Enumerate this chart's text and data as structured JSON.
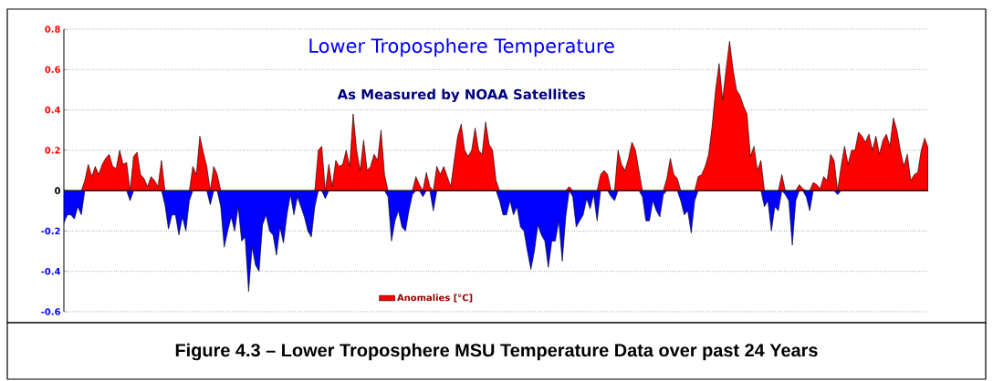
{
  "chart_data": {
    "type": "area",
    "title": "Lower Troposphere Temperature",
    "subtitle": "As Measured by NOAA Satellites",
    "categories": [
      null,
      null,
      null,
      null,
      null,
      null,
      null,
      null,
      null,
      null,
      null,
      null,
      null,
      null,
      null,
      null,
      null,
      null,
      null,
      null,
      null,
      null,
      null,
      null,
      null,
      null,
      null,
      null,
      null,
      null,
      null,
      null,
      null,
      null,
      null,
      null,
      null,
      null,
      null,
      null,
      null,
      null,
      null,
      null,
      null,
      null,
      null,
      null,
      null,
      null,
      null,
      null,
      null,
      null,
      null,
      null,
      null,
      null,
      null,
      null,
      null,
      null,
      null,
      null,
      null,
      null,
      null,
      null,
      null,
      null,
      null,
      null,
      null,
      null,
      null,
      null,
      null,
      null,
      null,
      null,
      null,
      null,
      null,
      null,
      null,
      null,
      null,
      null,
      null,
      null,
      null,
      null,
      null,
      null,
      null,
      null,
      null,
      null,
      null,
      null,
      null,
      null,
      null,
      null,
      null,
      null,
      null,
      null,
      null,
      null,
      null,
      null,
      null,
      null,
      null,
      null,
      null,
      null,
      null,
      null,
      null,
      null,
      null,
      null,
      null,
      null,
      null,
      null,
      null,
      null,
      null,
      null,
      null,
      null,
      null,
      null,
      null,
      null,
      null,
      null,
      null,
      null,
      null,
      null,
      null,
      null,
      null,
      null,
      null,
      null,
      null,
      null,
      null,
      null,
      null,
      null,
      null,
      null,
      null,
      null,
      null,
      null,
      null,
      null,
      null,
      null,
      null,
      null,
      null,
      null,
      null,
      null,
      null,
      null,
      null,
      null,
      null,
      null,
      null,
      null,
      null,
      null,
      null,
      null,
      null,
      null,
      null,
      null,
      null,
      null,
      null,
      null,
      null,
      null,
      null,
      null,
      null,
      null,
      null,
      null,
      null,
      null,
      null,
      null,
      null,
      null,
      null,
      null,
      null,
      null,
      null,
      null,
      null,
      null,
      null,
      null,
      null,
      null,
      null,
      null,
      null,
      null,
      null,
      null,
      null,
      null,
      null,
      null,
      null,
      null,
      null,
      null,
      null,
      null,
      null,
      null,
      null,
      null,
      null,
      null,
      null,
      null,
      null,
      null,
      null,
      null,
      null,
      null,
      null
    ],
    "series": [
      {
        "name": "Anomalies [°C]",
        "color": "#ff0000",
        "values": [
          0,
          0,
          0,
          0,
          0,
          0,
          0.05,
          0.13,
          0.07,
          0.12,
          0.08,
          0.13,
          0.16,
          0.18,
          0.12,
          0.11,
          0.2,
          0.13,
          0.14,
          0,
          0.17,
          0.19,
          0.08,
          0.06,
          0.02,
          0.07,
          0.05,
          0.02,
          0.15,
          0,
          0,
          0,
          0,
          0,
          0,
          0,
          0,
          0.12,
          0.08,
          0.27,
          0.19,
          0.12,
          0,
          0.12,
          0.08,
          0,
          0,
          0,
          0,
          0,
          0,
          0,
          0,
          0,
          0,
          0,
          0,
          0,
          0,
          0,
          0,
          0,
          0,
          0,
          0,
          0,
          0,
          0,
          0,
          0,
          0,
          0,
          0,
          0.2,
          0.22,
          0,
          0.13,
          0.02,
          0.15,
          0.12,
          0.13,
          0.2,
          0.12,
          0.38,
          0.2,
          0.1,
          0.25,
          0.1,
          0.12,
          0.18,
          0.15,
          0.3,
          0.08,
          0,
          0,
          0,
          0,
          0,
          0,
          0,
          0,
          0.07,
          0.03,
          0,
          0.09,
          0.02,
          0,
          0.12,
          0.08,
          0.12,
          0.07,
          0.02,
          0.15,
          0.27,
          0.33,
          0.2,
          0.17,
          0.2,
          0.31,
          0.2,
          0.18,
          0.34,
          0.23,
          0.2,
          0.05,
          0,
          0,
          0,
          0,
          0,
          0,
          0,
          0,
          0,
          0,
          0,
          0,
          0,
          0,
          0,
          0,
          0,
          0,
          0,
          0,
          0.02,
          0,
          0,
          0,
          0,
          0,
          0,
          0,
          0,
          0.08,
          0.1,
          0.08,
          0,
          0,
          0.2,
          0.13,
          0.1,
          0.16,
          0.24,
          0.2,
          0.1,
          0,
          0,
          0,
          0,
          0,
          0,
          0,
          0.06,
          0.16,
          0.08,
          0.06,
          0,
          0,
          0,
          0,
          0,
          0.07,
          0.08,
          0.12,
          0.18,
          0.32,
          0.5,
          0.63,
          0.45,
          0.6,
          0.74,
          0.6,
          0.5,
          0.47,
          0.42,
          0.38,
          0.17,
          0.22,
          0.1,
          0.15,
          0,
          0,
          0,
          0,
          0,
          0.08,
          0,
          0,
          0,
          0,
          0.03,
          0.01,
          0,
          0,
          0.04,
          0.03,
          0.01,
          0.07,
          0.05,
          0.18,
          0.15,
          0,
          0.12,
          0.22,
          0.13,
          0.2,
          0.2,
          0.29,
          0.27,
          0.24,
          0.28,
          0.2,
          0.27,
          0.18,
          0.25,
          0.28,
          0.22,
          0.36,
          0.3,
          0.2,
          0.12,
          0.18,
          0.05,
          0.08,
          0.09,
          0.2,
          0.26,
          0.21
        ]
      },
      {
        "color": "#0000ff",
        "values": [
          -0.16,
          -0.12,
          -0.12,
          -0.14,
          -0.08,
          -0.12,
          0,
          0,
          0,
          0,
          0,
          0,
          0,
          0,
          0,
          0,
          0,
          0,
          0,
          -0.05,
          0,
          0,
          0,
          0,
          0,
          0,
          0,
          0,
          0,
          -0.07,
          -0.19,
          -0.12,
          -0.12,
          -0.22,
          -0.13,
          -0.2,
          -0.05,
          0,
          0,
          0,
          0,
          0,
          -0.07,
          0,
          0,
          -0.08,
          -0.28,
          -0.2,
          -0.13,
          -0.2,
          -0.08,
          -0.25,
          -0.23,
          -0.5,
          -0.28,
          -0.37,
          -0.4,
          -0.17,
          -0.12,
          -0.2,
          -0.22,
          -0.32,
          -0.18,
          -0.26,
          -0.12,
          -0.02,
          -0.12,
          -0.03,
          -0.08,
          -0.13,
          -0.2,
          -0.23,
          -0.08,
          0,
          0,
          -0.04,
          0,
          0,
          0,
          0,
          0,
          0,
          0,
          0,
          0,
          0,
          0,
          0,
          0,
          0,
          0,
          0,
          0,
          -0.03,
          -0.25,
          -0.15,
          -0.1,
          -0.18,
          -0.2,
          -0.1,
          -0.02,
          0,
          0,
          -0.03,
          0,
          0,
          -0.1,
          0,
          0,
          0,
          0,
          0,
          0,
          0,
          0,
          0,
          0,
          0,
          0,
          0,
          0,
          0,
          0,
          0,
          0,
          -0.05,
          -0.12,
          -0.12,
          -0.05,
          -0.12,
          -0.08,
          -0.18,
          -0.2,
          -0.3,
          -0.39,
          -0.3,
          -0.17,
          -0.22,
          -0.25,
          -0.38,
          -0.25,
          -0.25,
          -0.15,
          -0.35,
          -0.13,
          0,
          -0.03,
          -0.18,
          -0.15,
          -0.12,
          -0.04,
          -0.09,
          -0.02,
          -0.15,
          0,
          0,
          0,
          -0.03,
          -0.05,
          0,
          0,
          0,
          0,
          0,
          0,
          0,
          -0.03,
          -0.15,
          -0.15,
          -0.05,
          -0.1,
          -0.13,
          -0.02,
          0,
          0,
          0,
          0,
          -0.05,
          -0.12,
          -0.1,
          -0.21,
          -0.05,
          0,
          0,
          0,
          0,
          0,
          0,
          0,
          0,
          0,
          0,
          0,
          0,
          0,
          0,
          0,
          0,
          0,
          0,
          0,
          -0.08,
          -0.05,
          -0.2,
          -0.08,
          -0.1,
          0,
          -0.02,
          -0.05,
          -0.27,
          -0.05,
          0,
          0,
          -0.03,
          -0.1,
          0,
          0,
          0,
          0,
          0,
          0,
          0,
          -0.02,
          0,
          0,
          0,
          0,
          0,
          0,
          0,
          0,
          0,
          0,
          0,
          0,
          0,
          0,
          0,
          0,
          0,
          0,
          0,
          0,
          0,
          0,
          0,
          0,
          0,
          0
        ]
      }
    ],
    "ylim": [
      -0.6,
      0.8
    ],
    "yticks": [
      -0.6,
      -0.4,
      -0.2,
      0,
      0.2,
      0.4,
      0.6,
      0.8
    ],
    "grid": "y",
    "legend": "bottom",
    "tick_labels": "y",
    "annotations": [
      "Figure 4.3 – Lower Troposphere MSU Temperature Data over past 24 Years"
    ]
  }
}
